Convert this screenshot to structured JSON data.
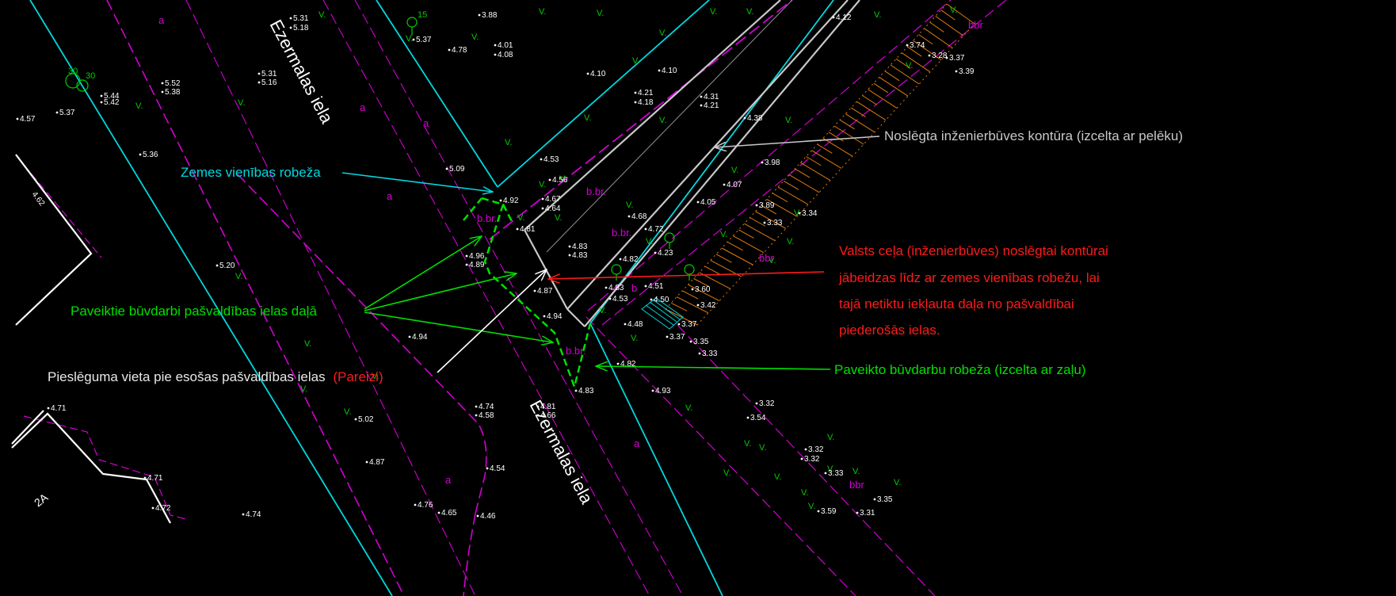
{
  "colors": {
    "background": "#000000",
    "land_boundary": "#00d8e0",
    "road_magenta": "#d400d4",
    "green_works": "#00e000",
    "grey_contour": "#c8c8c8",
    "red_note": "#ff1a1a",
    "orange_slope": "#e07a10",
    "parcel_white": "#ffffff"
  },
  "map": {
    "street_name_top": "Ezermalas iela",
    "street_name_bottom": "Ezermalas iela",
    "parcel_label": "2A",
    "zone_labels": {
      "a1": "a",
      "a2": "a",
      "a3": "a",
      "a4": "a",
      "a5": "a",
      "a6": "a",
      "bbr1": "bbr",
      "bbr2": "bbr",
      "bbr3": "bbr",
      "bbr_dot1": "b.br.",
      "bbr_dot2": "b.br.",
      "bbr_dot3": "b.br.",
      "bbr_dot4": "b.br.",
      "b": "b"
    },
    "tree_numbers": {
      "t1": "15",
      "t2": "30",
      "t3": "30"
    },
    "elevations": {
      "e1": "3.88",
      "e2": "5.31",
      "e3": "5.18",
      "e4": "5.37",
      "e5": "4.01",
      "e6": "4.08",
      "e7": "4.78",
      "e8": "4.10",
      "e9": "4.10",
      "e10": "4.21",
      "e11": "4.18",
      "e12": "4.31",
      "e13": "4.21",
      "e14": "4.38",
      "e15": "4.12",
      "e16": "3.74",
      "e17": "3.28",
      "e18": "3.37",
      "e19": "3.39",
      "e20": "5.52",
      "e21": "5.38",
      "e22": "5.31",
      "e23": "5.16",
      "e24": "5.44",
      "e25": "5.42",
      "e26": "4.57",
      "e27": "5.37",
      "e28": "5.36",
      "e29": "4.62",
      "e30": "5.09",
      "e31": "4.53",
      "e32": "4.56",
      "e33": "4.92",
      "e34": "4.67",
      "e35": "4.64",
      "e36": "4.81",
      "e37": "4.68",
      "e38": "4.72",
      "e39": "4.07",
      "e40": "4.05",
      "e41": "3.98",
      "e42": "3.89",
      "e43": "3.33",
      "e44": "3.34",
      "e45": "4.83",
      "e46": "4.83",
      "e47": "4.82",
      "e48": "4.23",
      "e49": "4.96",
      "e50": "4.89",
      "e51": "5.20",
      "e52": "4.83",
      "e53": "4.51",
      "e54": "4.53",
      "e55": "4.50",
      "e56": "3.60",
      "e57": "3.42",
      "e58": "4.87",
      "e59": "4.94",
      "e60": "4.48",
      "e61": "3.37",
      "e62": "3.37",
      "e63": "3.35",
      "e64": "3.33",
      "e65": "4.94",
      "e66": "4.82",
      "e67": "4.83",
      "e68": "4.93",
      "e69": "4.71",
      "e70": "5.02",
      "e71": "4.74",
      "e72": "4.58",
      "e73": "4.81",
      "e74": "4.66",
      "e75": "3.32",
      "e76": "3.54",
      "e77": "4.87",
      "e78": "4.54",
      "e79": "3.32",
      "e80": "3.32",
      "e81": "4.71",
      "e82": "3.33",
      "e83": "4.72",
      "e84": "4.74",
      "e85": "4.76",
      "e86": "4.65",
      "e87": "4.46",
      "e88": "3.35",
      "e89": "3.59",
      "e90": "3.31"
    }
  },
  "annotations": {
    "land_boundary": "Zemes vienības robeža",
    "closed_contour": "Noslēgta inženierbūves kontūra (izcelta ar pelēku)",
    "works_in_street": "Paveiktie būvdarbi pašvaldības ielas daļā",
    "red_note_lines": [
      "Valsts ceļa (inženierbūves) noslēgtai kontūrai",
      "jābeidzas līdz ar zemes vienības robežu, lai",
      "tajā netiktu iekļauta daļa no pašvaldībai",
      "piederošās ielas."
    ],
    "connection_point": "Pieslēguma vieta pie esošas pašvaldības ielas",
    "connection_correct": "(Pareizi)",
    "works_boundary": "Paveikto būvdarbu robeža (izcelta ar zaļu)"
  }
}
